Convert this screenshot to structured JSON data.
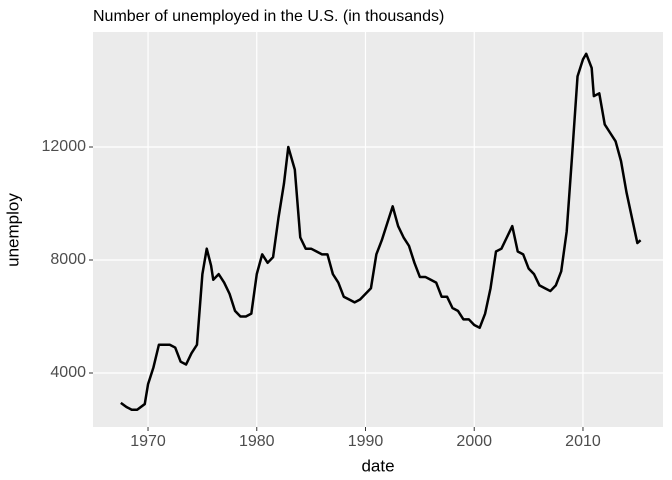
{
  "chart_data": {
    "type": "line",
    "title": "Number of unemployed in the U.S. (in thousands)",
    "x_label": "date",
    "y_label": "unemploy",
    "x": [
      1967.5,
      1968,
      1968.5,
      1969,
      1969.7,
      1970,
      1970.5,
      1971,
      1971.5,
      1972,
      1972.5,
      1973,
      1973.5,
      1974,
      1974.5,
      1975,
      1975.4,
      1975.8,
      1976,
      1976.5,
      1977,
      1977.5,
      1978,
      1978.5,
      1979,
      1979.5,
      1980,
      1980.5,
      1981,
      1981.5,
      1982,
      1982.5,
      1982.9,
      1983.5,
      1984,
      1984.5,
      1985,
      1985.5,
      1986,
      1986.5,
      1987,
      1987.5,
      1988,
      1988.5,
      1989,
      1989.5,
      1990,
      1990.5,
      1991,
      1991.5,
      1992,
      1992.5,
      1993,
      1993.5,
      1994,
      1994.5,
      1995,
      1995.5,
      1996,
      1996.5,
      1997,
      1997.5,
      1998,
      1998.5,
      1999,
      1999.5,
      2000,
      2000.5,
      2001,
      2001.5,
      2002,
      2002.5,
      2003,
      2003.5,
      2004,
      2004.5,
      2005,
      2005.5,
      2006,
      2006.5,
      2007,
      2007.5,
      2008,
      2008.5,
      2009,
      2009.5,
      2010,
      2010.3,
      2010.8,
      2011,
      2011.5,
      2012,
      2012.5,
      2013,
      2013.5,
      2014,
      2014.5,
      2015,
      2015.3
    ],
    "series": [
      {
        "name": "unemploy",
        "color": "#000000",
        "values": [
          2944,
          2800,
          2700,
          2700,
          2900,
          3600,
          4200,
          5000,
          5000,
          5000,
          4900,
          4400,
          4300,
          4700,
          5000,
          7500,
          8400,
          7800,
          7300,
          7500,
          7200,
          6800,
          6200,
          6000,
          6000,
          6100,
          7500,
          8200,
          7900,
          8100,
          9500,
          10700,
          12000,
          11200,
          8800,
          8400,
          8400,
          8300,
          8200,
          8200,
          7500,
          7200,
          6700,
          6600,
          6500,
          6600,
          6800,
          7000,
          8200,
          8700,
          9300,
          9900,
          9200,
          8800,
          8500,
          7900,
          7400,
          7400,
          7300,
          7200,
          6700,
          6700,
          6300,
          6200,
          5900,
          5900,
          5700,
          5600,
          6100,
          7000,
          8300,
          8400,
          8800,
          9200,
          8300,
          8200,
          7700,
          7500,
          7100,
          7000,
          6900,
          7100,
          7600,
          9000,
          11700,
          14500,
          15100,
          15300,
          14800,
          13800,
          13900,
          12800,
          12500,
          12200,
          11500,
          10400,
          9500,
          8600,
          8700
        ]
      }
    ],
    "xlim": [
      1964.94,
      2017.36
    ],
    "xticks": [
      1970,
      1980,
      1990,
      2000,
      2010
    ],
    "ylim": [
      2088,
      16071
    ],
    "yticks": [
      4000,
      8000,
      12000
    ],
    "grid": true
  }
}
